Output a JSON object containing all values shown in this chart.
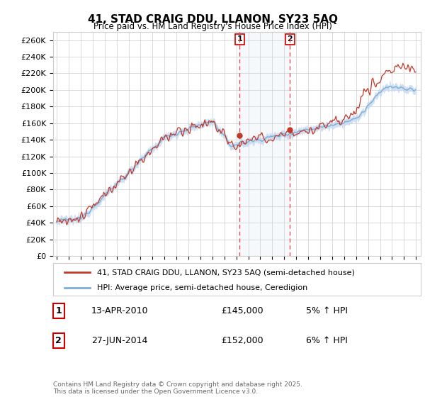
{
  "title": "41, STAD CRAIG DDU, LLANON, SY23 5AQ",
  "subtitle": "Price paid vs. HM Land Registry's House Price Index (HPI)",
  "ylabel_ticks": [
    "£0",
    "£20K",
    "£40K",
    "£60K",
    "£80K",
    "£100K",
    "£120K",
    "£140K",
    "£160K",
    "£180K",
    "£200K",
    "£220K",
    "£240K",
    "£260K"
  ],
  "ytick_values": [
    0,
    20000,
    40000,
    60000,
    80000,
    100000,
    120000,
    140000,
    160000,
    180000,
    200000,
    220000,
    240000,
    260000
  ],
  "ylim": [
    0,
    270000
  ],
  "hpi_fill_color": "#c5d8f0",
  "price_color": "#c0392b",
  "hpi_line_color": "#7bafd4",
  "transaction1_date": 2010.28,
  "transaction1_price": 145000,
  "transaction2_date": 2014.48,
  "transaction2_price": 152000,
  "legend_property": "41, STAD CRAIG DDU, LLANON, SY23 5AQ (semi-detached house)",
  "legend_hpi": "HPI: Average price, semi-detached house, Ceredigion",
  "table_row1": [
    "1",
    "13-APR-2010",
    "£145,000",
    "5% ↑ HPI"
  ],
  "table_row2": [
    "2",
    "27-JUN-2014",
    "£152,000",
    "6% ↑ HPI"
  ],
  "footnote": "Contains HM Land Registry data © Crown copyright and database right 2025.\nThis data is licensed under the Open Government Licence v3.0.",
  "background_color": "#ffffff",
  "grid_color": "#cccccc"
}
